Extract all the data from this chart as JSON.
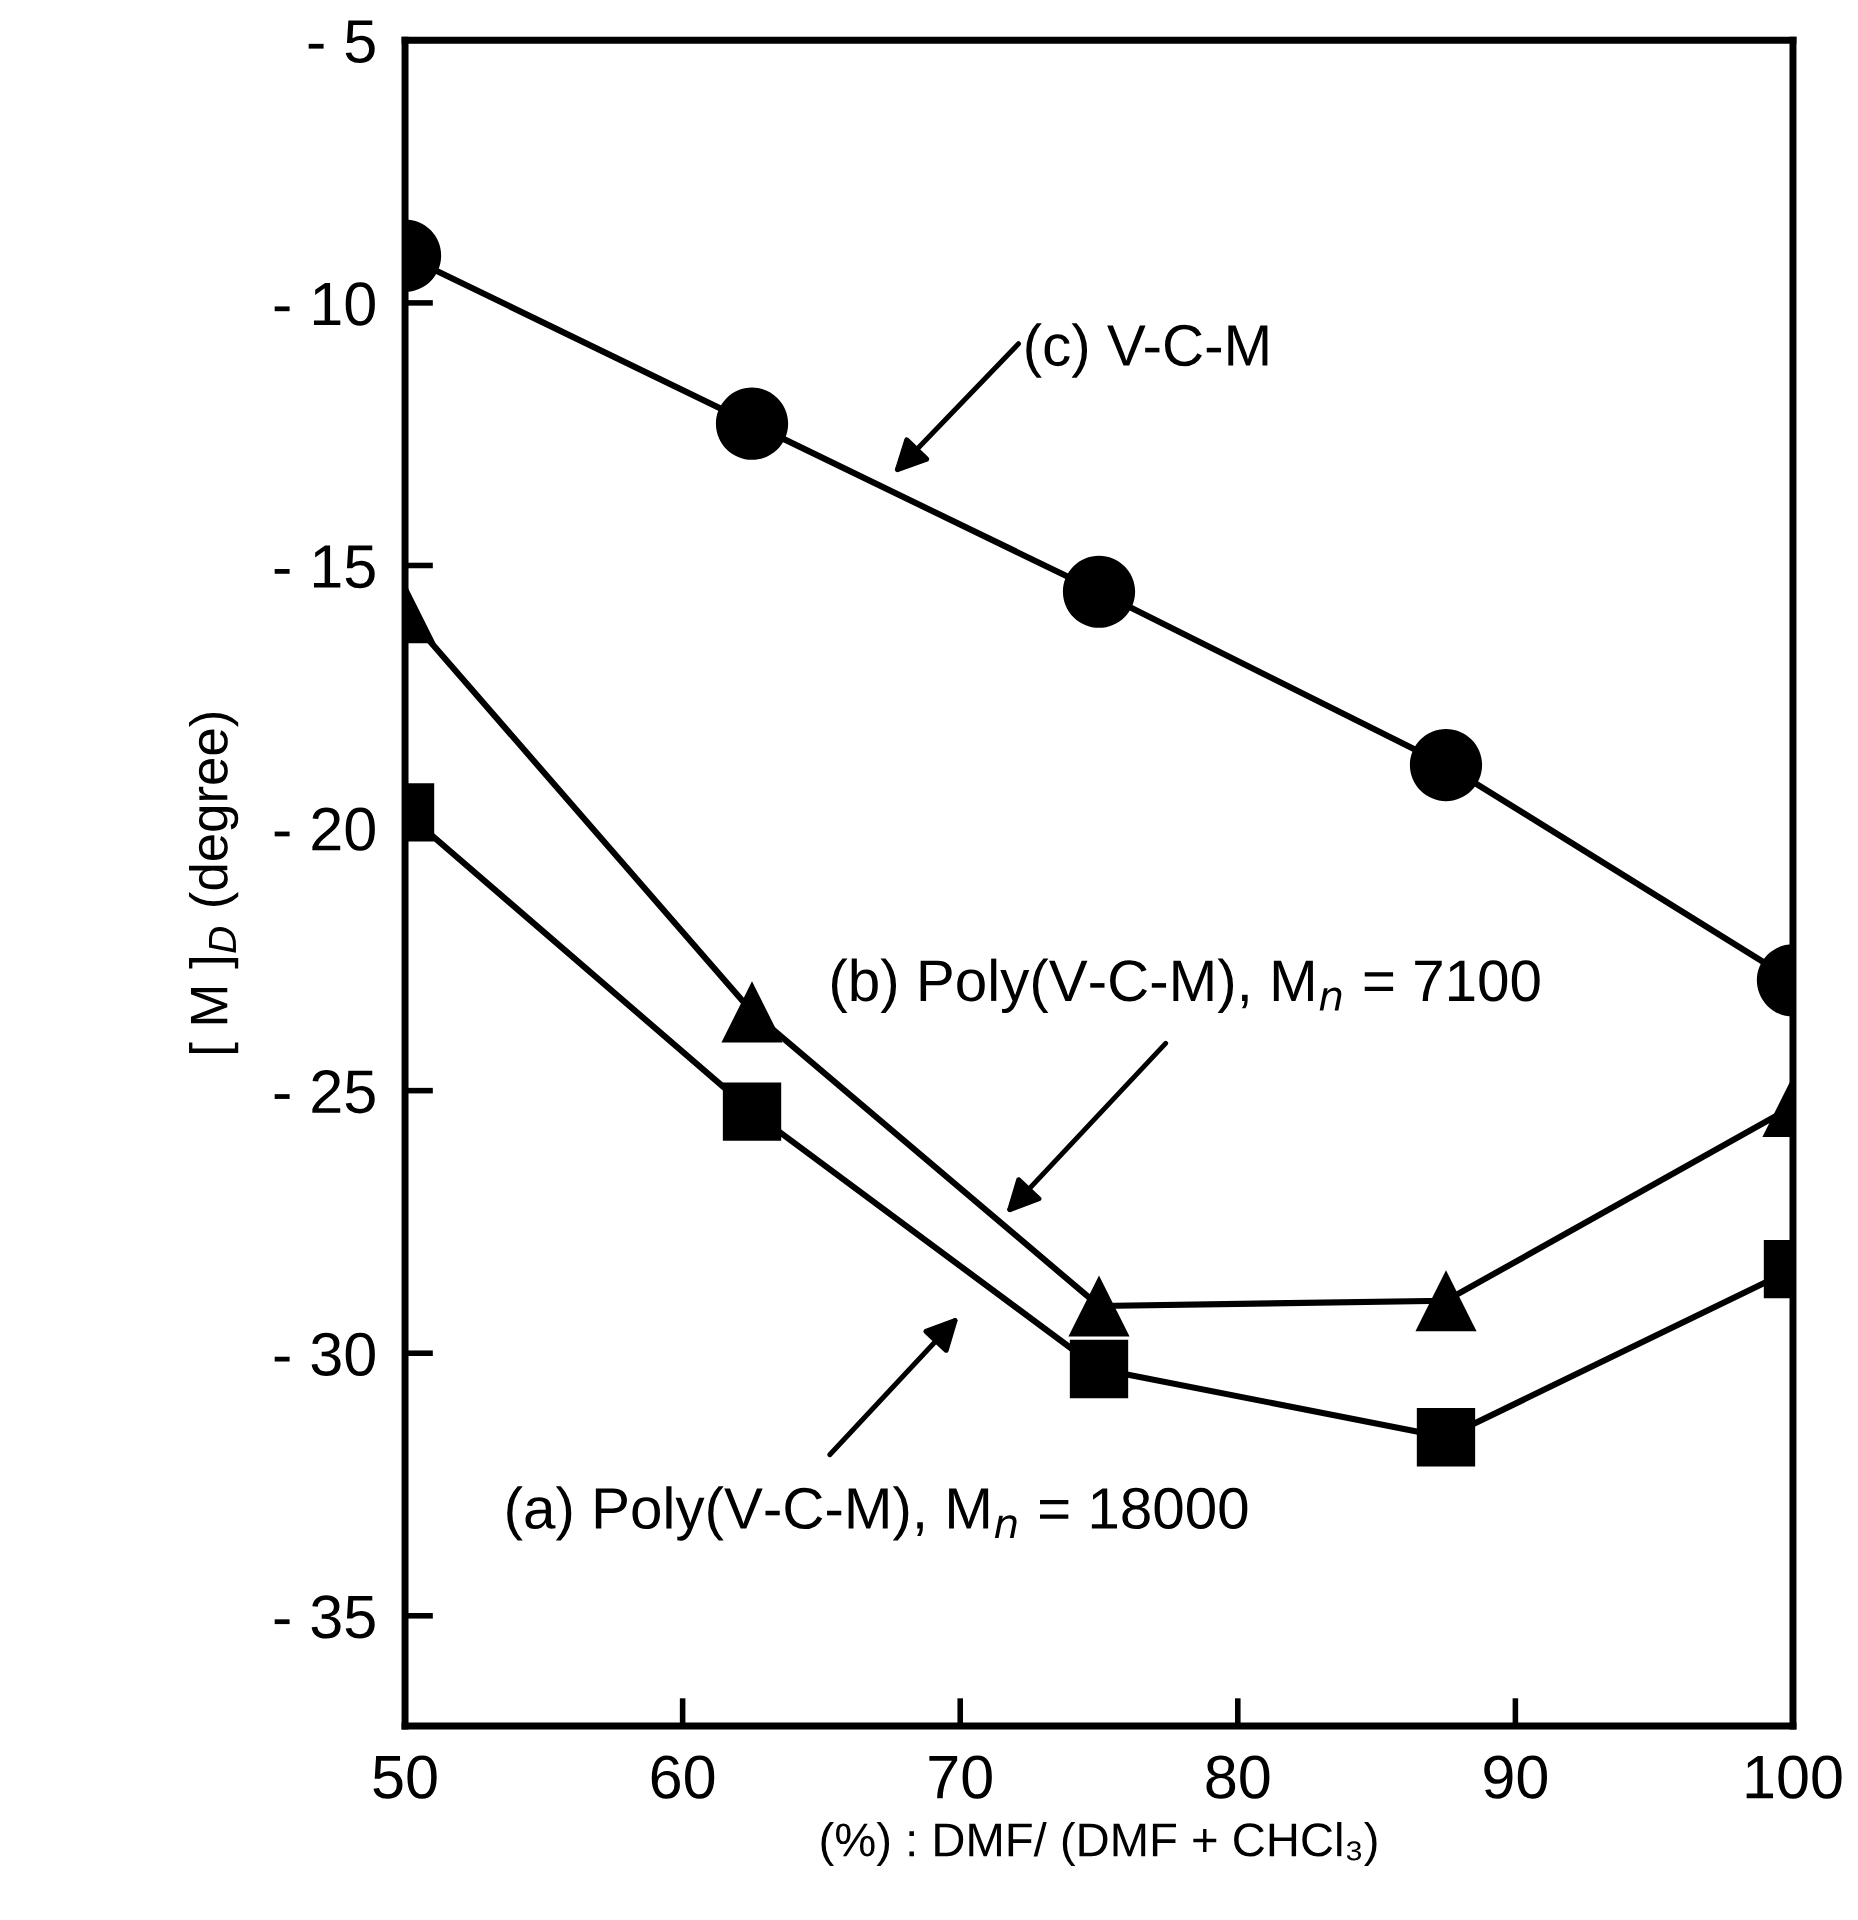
{
  "chart_data": {
    "type": "line",
    "xlabel": "(%) : DMF/ (DMF + CHCl₃)",
    "ylabel": "[ M ]$_{D}$ (degree)",
    "x": [
      50,
      62.5,
      75,
      87.5,
      100
    ],
    "series": [
      {
        "color": "#000000",
        "marker": "square",
        "values": [
          -19.7,
          -25.4,
          -30.3,
          -31.6,
          -28.4
        ]
      },
      {
        "color": "#000000",
        "marker": "triangle",
        "values": [
          -15.9,
          -23.5,
          -29.1,
          -29.0,
          -25.3
        ]
      },
      {
        "color": "#000000",
        "marker": "circle",
        "values": [
          -9.1,
          -12.3,
          -15.5,
          -18.8,
          -22.9
        ]
      }
    ],
    "annotations": [
      "(a) Poly(V-C-M), M$_{n}$ = 18000",
      "(b) Poly(V-C-M), M$_{n}$ = 7100",
      "(c) V-C-M"
    ],
    "xlim": [
      50,
      100
    ],
    "ylim": [
      -37.1,
      -5
    ],
    "xticks": [
      50,
      60,
      70,
      80,
      90,
      100
    ],
    "yticks": [
      {
        "value": -5,
        "label": "- 5"
      },
      {
        "value": -10,
        "label": "- 10"
      },
      {
        "value": -15,
        "label": "- 15"
      },
      {
        "value": -20,
        "label": "- 20"
      },
      {
        "value": -25,
        "label": "- 25"
      },
      {
        "value": -30,
        "label": "- 30"
      },
      {
        "value": -35,
        "label": "- 35"
      }
    ],
    "grid": false,
    "legend": false,
    "line_style": "solid"
  }
}
